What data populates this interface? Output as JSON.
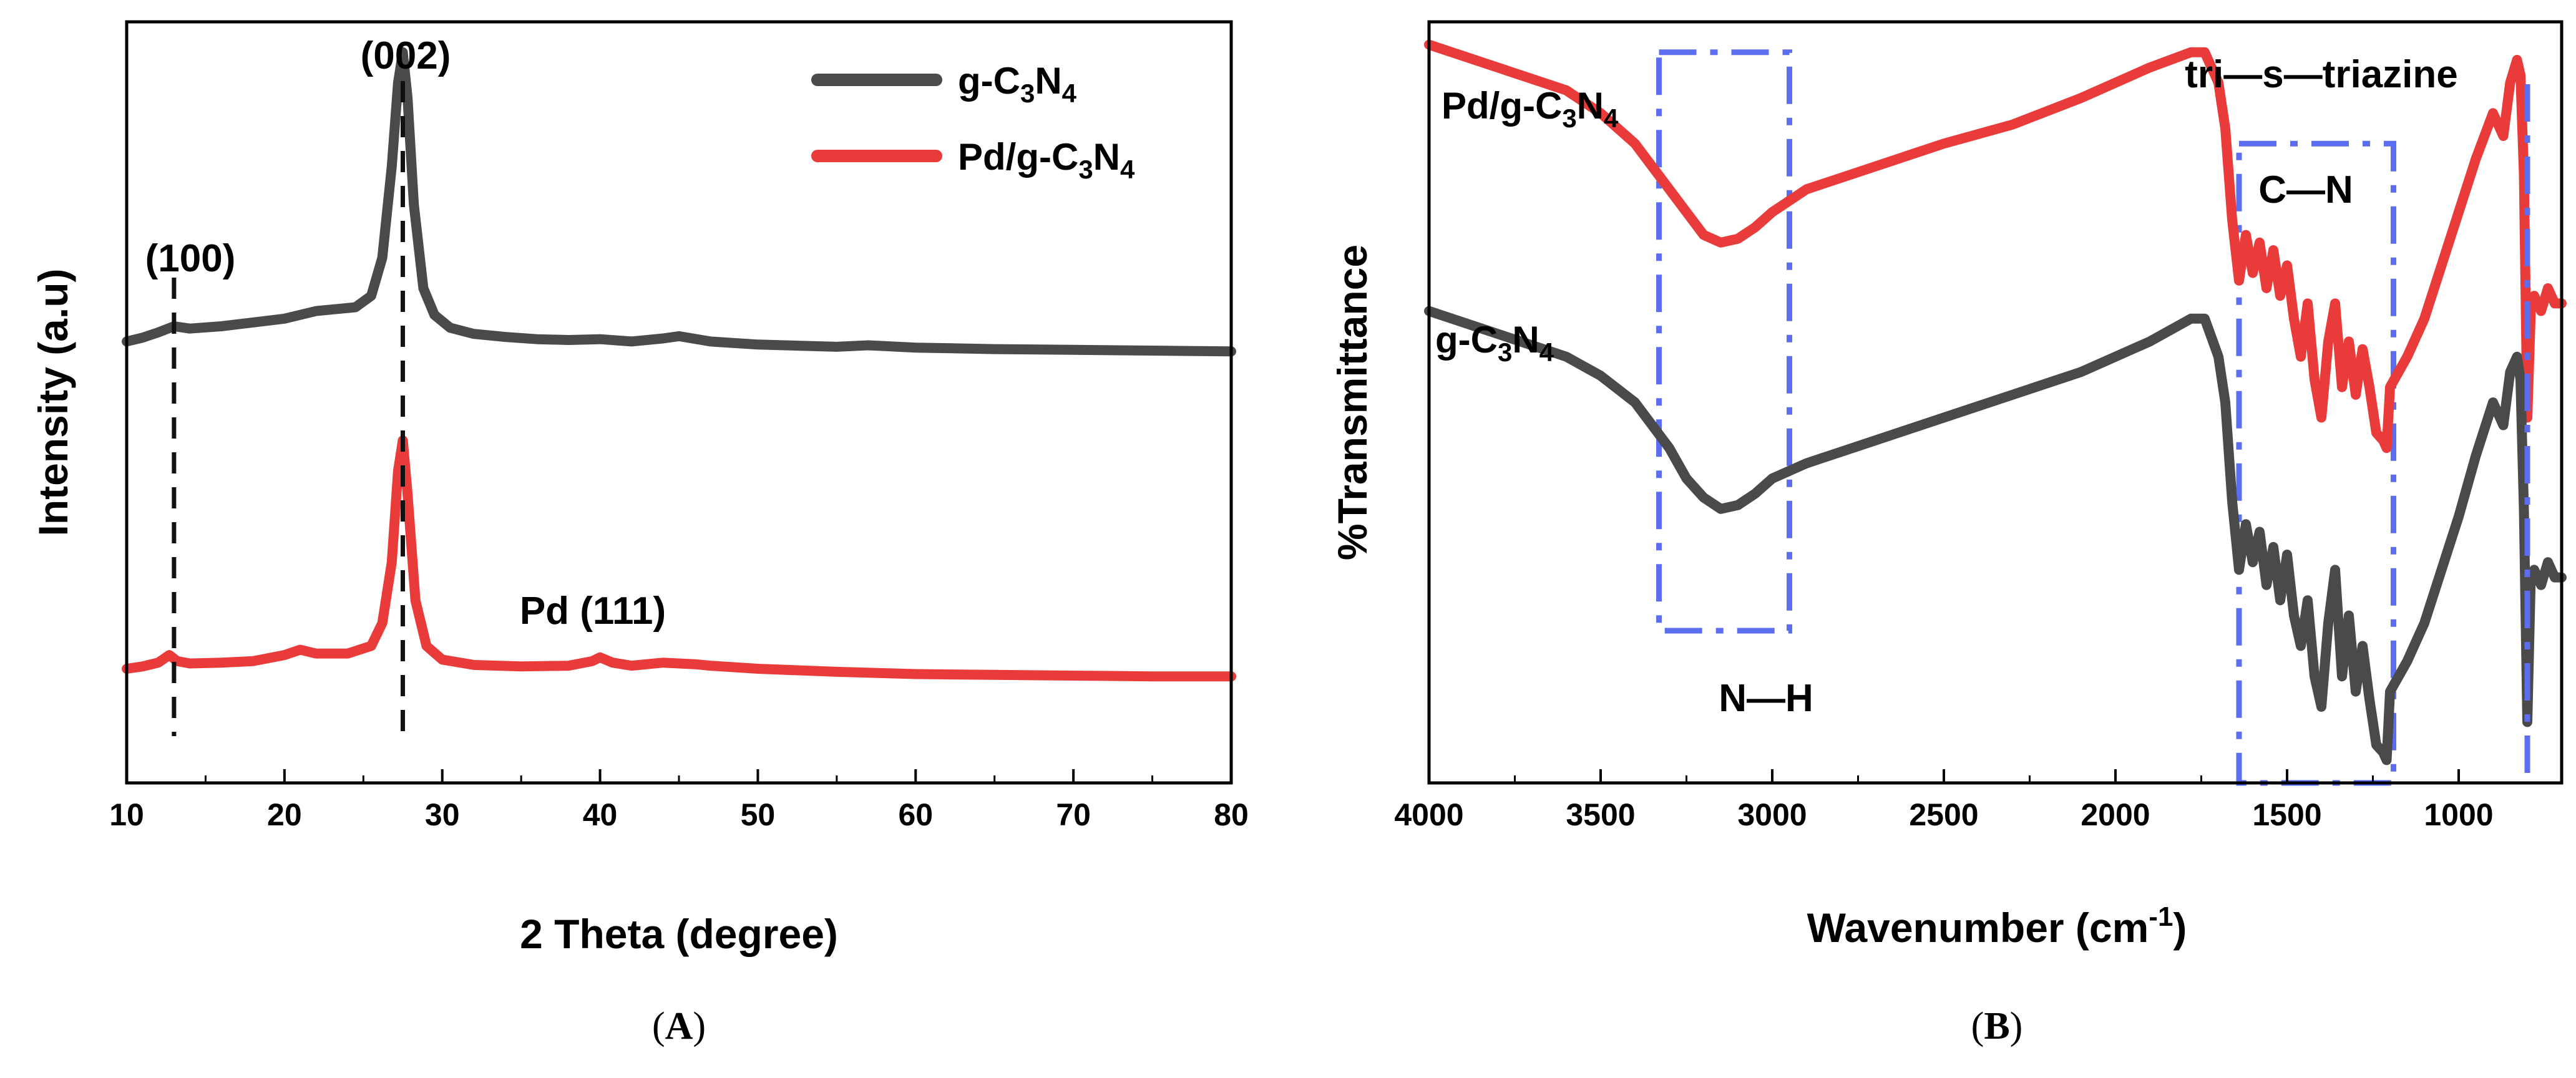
{
  "colors": {
    "gcn": "#4a4a4a",
    "pdgcn": "#ea3b3b",
    "box": "#5b6ef0",
    "guide": "#111111"
  },
  "chart_data": [
    {
      "type": "line",
      "panel": "A",
      "caption_label": "A",
      "xlabel": "2 Theta (degree)",
      "ylabel": "Intensity (a.u)",
      "xlim": [
        10,
        80
      ],
      "xticks": [
        10,
        20,
        30,
        40,
        50,
        60,
        70,
        80
      ],
      "y_units": "arbitrary (stacked, 0-100)",
      "ylim": [
        0,
        100
      ],
      "legend": {
        "position": "top-right",
        "entries": [
          {
            "base": "g-C",
            "s1": "3",
            "mid": "N",
            "s2": "4",
            "series": "g-C3N4"
          },
          {
            "base": "Pd/g-C",
            "s1": "3",
            "mid": "N",
            "s2": "4",
            "series": "Pd/g-C3N4"
          }
        ]
      },
      "series": [
        {
          "name": "g-C3N4",
          "color_key": "gcn",
          "x": [
            10,
            11,
            12,
            13,
            14,
            16,
            18,
            20,
            22,
            23.5,
            24.5,
            25.5,
            26.2,
            26.8,
            27.2,
            27.5,
            27.8,
            28.2,
            28.8,
            29.5,
            30.5,
            32,
            34,
            36,
            38,
            40,
            42,
            44,
            45,
            47,
            50,
            55,
            57,
            60,
            65,
            70,
            75,
            80
          ],
          "y": [
            58,
            58.5,
            59.2,
            60,
            59.7,
            60,
            60.5,
            61,
            62,
            62.3,
            62.5,
            64,
            69,
            81,
            92,
            96,
            90,
            76,
            65,
            61.5,
            59.8,
            59,
            58.6,
            58.3,
            58.2,
            58.3,
            58,
            58.4,
            58.7,
            58,
            57.6,
            57.3,
            57.5,
            57.2,
            57,
            56.9,
            56.8,
            56.7
          ]
        },
        {
          "name": "Pd/g-C3N4",
          "color_key": "pdgcn",
          "x": [
            10,
            11,
            12,
            12.7,
            13.2,
            14,
            16,
            18,
            20,
            21,
            22,
            24,
            25.5,
            26.2,
            26.8,
            27.2,
            27.5,
            27.8,
            28.3,
            29,
            30,
            32,
            35,
            38,
            39.5,
            40,
            40.8,
            42,
            44,
            46,
            47,
            50,
            55,
            60,
            65,
            70,
            75,
            80
          ],
          "y": [
            15,
            15.3,
            15.8,
            16.8,
            16,
            15.7,
            15.8,
            16,
            16.8,
            17.5,
            17,
            17,
            18,
            21,
            29,
            41,
            45,
            38,
            24,
            18,
            16.2,
            15.5,
            15.3,
            15.4,
            16,
            16.5,
            15.8,
            15.4,
            15.8,
            15.6,
            15.4,
            15,
            14.6,
            14.3,
            14.2,
            14.1,
            14,
            14
          ]
        }
      ],
      "annotations": [
        {
          "text": "(002)",
          "x": 27.5
        },
        {
          "text": "(100)",
          "x": 13
        },
        {
          "text": "Pd (111)",
          "x": 40
        }
      ],
      "guides": [
        {
          "x": 13,
          "style": "dashed"
        },
        {
          "x": 27.5,
          "style": "dashed"
        }
      ]
    },
    {
      "type": "line",
      "panel": "B",
      "caption_label": "B",
      "xlabel_main": "Wavenumber (cm",
      "xlabel_sup": "-1",
      "xlabel_end": ")",
      "ylabel": "%Transmittance",
      "xlim": [
        4000,
        700
      ],
      "xticks": [
        4000,
        3500,
        3000,
        2500,
        2000,
        1500,
        1000
      ],
      "y_units": "arbitrary (stacked, 0-100)",
      "ylim": [
        0,
        100
      ],
      "series": [
        {
          "name": "Pd/g-C3N4",
          "color_key": "pdgcn",
          "label": {
            "base": "Pd/g-C",
            "s1": "3",
            "mid": "N",
            "s2": "4"
          },
          "x": [
            4000,
            3800,
            3600,
            3500,
            3400,
            3300,
            3250,
            3200,
            3150,
            3100,
            3050,
            3000,
            2900,
            2700,
            2500,
            2300,
            2100,
            1900,
            1780,
            1740,
            1700,
            1680,
            1660,
            1640,
            1620,
            1600,
            1580,
            1560,
            1540,
            1520,
            1500,
            1480,
            1460,
            1440,
            1420,
            1400,
            1380,
            1360,
            1340,
            1320,
            1300,
            1280,
            1260,
            1240,
            1220,
            1210,
            1200,
            1150,
            1100,
            1050,
            1000,
            950,
            900,
            870,
            850,
            830,
            820,
            810,
            800,
            790,
            780,
            760,
            740,
            720,
            700
          ],
          "y": [
            97,
            94,
            91,
            88,
            84,
            78,
            75,
            72,
            71,
            71.5,
            73,
            75,
            78,
            81,
            84,
            86.5,
            90,
            94,
            96,
            96,
            92,
            86,
            74,
            66,
            72,
            67,
            71,
            65,
            70,
            64,
            68,
            61,
            56,
            63,
            53,
            48,
            58,
            63,
            52,
            58,
            51,
            57,
            52,
            46,
            45,
            44,
            52,
            56,
            61,
            68,
            75,
            82,
            88,
            85,
            92,
            95,
            93,
            80,
            48,
            62,
            64,
            62,
            65,
            63,
            63
          ]
        },
        {
          "name": "g-C3N4",
          "color_key": "gcn",
          "label": {
            "base": "g-C",
            "s1": "3",
            "mid": "N",
            "s2": "4"
          },
          "x": [
            4000,
            3800,
            3600,
            3500,
            3400,
            3300,
            3250,
            3200,
            3150,
            3100,
            3050,
            3000,
            2900,
            2700,
            2500,
            2300,
            2100,
            1900,
            1780,
            1740,
            1700,
            1680,
            1660,
            1640,
            1620,
            1600,
            1580,
            1560,
            1540,
            1520,
            1500,
            1480,
            1460,
            1440,
            1420,
            1400,
            1380,
            1360,
            1340,
            1320,
            1300,
            1280,
            1260,
            1240,
            1220,
            1210,
            1200,
            1150,
            1100,
            1050,
            1000,
            950,
            900,
            870,
            850,
            830,
            820,
            810,
            800,
            790,
            780,
            760,
            740,
            720,
            700
          ],
          "y": [
            62,
            59,
            56,
            53.5,
            50,
            44,
            40,
            37.5,
            36,
            36.5,
            38,
            40,
            42,
            45,
            48,
            51,
            54,
            58,
            61,
            61,
            56,
            50,
            37,
            28,
            34,
            29,
            33,
            26,
            31,
            24,
            30,
            22,
            18,
            24,
            14,
            10,
            21,
            28,
            14,
            22,
            12,
            18,
            11,
            5,
            4,
            3,
            12,
            16,
            21,
            28,
            35,
            43,
            50,
            47,
            54,
            56,
            53,
            36,
            8,
            27,
            28,
            26,
            29,
            27,
            27
          ]
        }
      ],
      "annotations": [
        {
          "text": "tri—s—triazine",
          "x": 800
        },
        {
          "text": "C—N",
          "x": 1425
        },
        {
          "text": "N—H",
          "x": 3150
        }
      ],
      "boxes": [
        {
          "name": "N-H",
          "x_range": [
            3330,
            2950
          ],
          "y_range": [
            20,
            96
          ]
        },
        {
          "name": "C-N",
          "x_range": [
            1640,
            1190
          ],
          "y_range": [
            0,
            84
          ]
        }
      ],
      "guides": [
        {
          "x": 800,
          "style": "dash-dot"
        }
      ]
    }
  ]
}
